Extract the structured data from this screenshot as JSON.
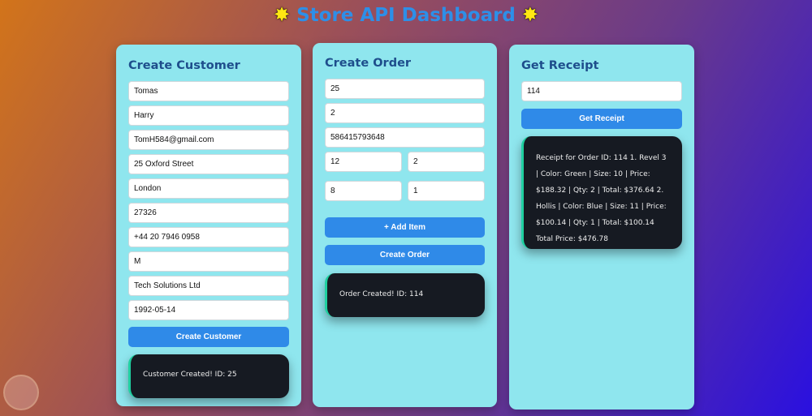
{
  "header": {
    "title": "Store API Dashboard",
    "star": "🌟"
  },
  "customer": {
    "title": "Create Customer",
    "fields": [
      "Tomas",
      "Harry",
      "TomH584@gmail.com",
      "25 Oxford Street",
      "London",
      "27326",
      "+44 20 7946 0958",
      "M",
      "Tech Solutions Ltd",
      "1992-05-14"
    ],
    "button": "Create Customer",
    "result": "Customer Created! ID: 25"
  },
  "order": {
    "title": "Create Order",
    "fields": [
      "25",
      "2",
      "586415793648"
    ],
    "items": [
      [
        "12",
        "2"
      ],
      [
        "8",
        "1"
      ]
    ],
    "add_item": "+ Add Item",
    "button": "Create Order",
    "result": "Order Created! ID: 114"
  },
  "receipt": {
    "title": "Get Receipt",
    "field": "114",
    "button": "Get Receipt",
    "result": "Receipt for Order ID: 114 1. Revel 3 | Color: Green | Size: 10 | Price: $188.32 | Qty: 2 | Total: $376.64 2. Hollis | Color: Blue | Size: 11 | Price: $100.14 | Qty: 1 | Total: $100.14 Total Price: $476.78"
  },
  "colors": {
    "accent": "#2f8ae8",
    "card": "#8fe6ee",
    "result_bg": "#161a22"
  }
}
